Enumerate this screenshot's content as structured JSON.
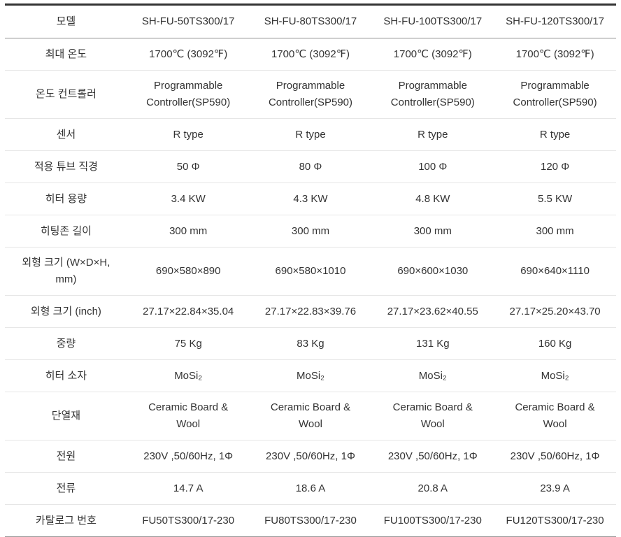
{
  "table": {
    "header": {
      "label": "모델",
      "models": [
        "SH-FU-50TS300/17",
        "SH-FU-80TS300/17",
        "SH-FU-100TS300/17",
        "SH-FU-120TS300/17"
      ]
    },
    "rows": [
      {
        "label": "최대 온도",
        "values": [
          "1700℃ (3092℉)",
          "1700℃ (3092℉)",
          "1700℃ (3092℉)",
          "1700℃ (3092℉)"
        ]
      },
      {
        "label": "온도 컨트롤러",
        "values": [
          "Programmable Controller(SP590)",
          "Programmable Controller(SP590)",
          "Programmable Controller(SP590)",
          "Programmable Controller(SP590)"
        ]
      },
      {
        "label": "센서",
        "values": [
          "R type",
          "R type",
          "R type",
          "R type"
        ]
      },
      {
        "label": "적용 튜브 직경",
        "values": [
          "50 Φ",
          "80 Φ",
          "100 Φ",
          "120 Φ"
        ]
      },
      {
        "label": "히터 용량",
        "values": [
          "3.4 KW",
          "4.3 KW",
          "4.8 KW",
          "5.5 KW"
        ]
      },
      {
        "label": "히팅존 길이",
        "values": [
          "300 mm",
          "300 mm",
          "300 mm",
          "300 mm"
        ]
      },
      {
        "label": "외형 크기 (W×D×H, mm)",
        "values": [
          "690×580×890",
          "690×580×1010",
          "690×600×1030",
          "690×640×1110"
        ]
      },
      {
        "label": "외형 크기 (inch)",
        "values": [
          "27.17×22.84×35.04",
          "27.17×22.83×39.76",
          "27.17×23.62×40.55",
          "27.17×25.20×43.70"
        ]
      },
      {
        "label": "중량",
        "values": [
          "75 Kg",
          "83 Kg",
          "131 Kg",
          "160 Kg"
        ]
      },
      {
        "label": "히터 소자",
        "values": [
          "MoSi₂",
          "MoSi₂",
          "MoSi₂",
          "MoSi₂"
        ]
      },
      {
        "label": "단열재",
        "values": [
          "Ceramic Board & Wool",
          "Ceramic Board & Wool",
          "Ceramic Board & Wool",
          "Ceramic Board & Wool"
        ]
      },
      {
        "label": "전원",
        "values": [
          "230V ,50/60Hz, 1Φ",
          "230V ,50/60Hz, 1Φ",
          "230V ,50/60Hz, 1Φ",
          "230V ,50/60Hz, 1Φ"
        ]
      },
      {
        "label": "전류",
        "values": [
          "14.7 A",
          "18.6 A",
          "20.8 A",
          "23.9 A"
        ]
      },
      {
        "label": "카탈로그 번호",
        "values": [
          "FU50TS300/17-230",
          "FU80TS300/17-230",
          "FU100TS300/17-230",
          "FU120TS300/17-230"
        ]
      }
    ],
    "colors": {
      "text": "#333333",
      "top_border": "#333333",
      "header_border": "#919191",
      "row_border": "#e6e6e6",
      "bottom_border": "#9a9a9a"
    }
  }
}
